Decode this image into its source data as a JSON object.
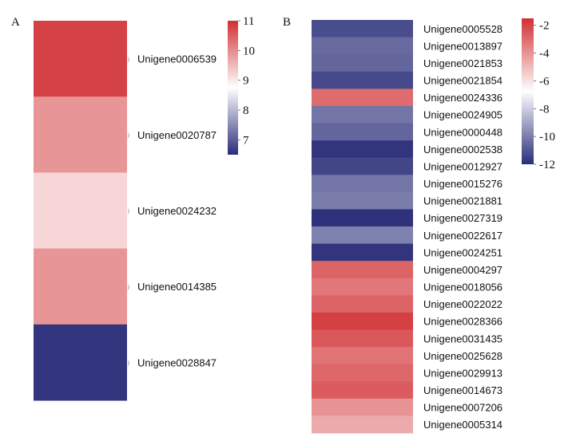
{
  "panel_a_letter": "A",
  "panel_b_letter": "B",
  "chart_data": [
    {
      "type": "heatmap",
      "panel": "A",
      "rows": [
        "Unigene0006539",
        "Unigene0020787",
        "Unigene0024232",
        "Unigene0014385",
        "Unigene0028847"
      ],
      "values": [
        10.8,
        9.9,
        9.2,
        9.9,
        6.6
      ],
      "colorbar": {
        "range": [
          6.5,
          11
        ],
        "ticks": [
          11,
          10,
          9,
          8,
          7
        ],
        "colors": [
          "#2a2d78",
          "#ffffff",
          "#d13033"
        ]
      }
    },
    {
      "type": "heatmap",
      "panel": "B",
      "rows": [
        "Unigene0005528",
        "Unigene0013897",
        "Unigene0021853",
        "Unigene0021854",
        "Unigene0024336",
        "Unigene0024905",
        "Unigene0000448",
        "Unigene0002538",
        "Unigene0012927",
        "Unigene0015276",
        "Unigene0021881",
        "Unigene0027319",
        "Unigene0022617",
        "Unigene0024251",
        "Unigene0004297",
        "Unigene0018056",
        "Unigene0022022",
        "Unigene0028366",
        "Unigene0031435",
        "Unigene0025628",
        "Unigene0029913",
        "Unigene0014673",
        "Unigene0007206",
        "Unigene0005314"
      ],
      "values": [
        -11.2,
        -10.5,
        -10.6,
        -11.3,
        -3.0,
        -10.2,
        -10.6,
        -11.8,
        -11.4,
        -10.2,
        -10.0,
        -11.9,
        -9.9,
        -11.8,
        -2.8,
        -3.3,
        -2.8,
        -1.9,
        -2.5,
        -3.2,
        -2.9,
        -2.6,
        -4.0,
        -4.6
      ],
      "colorbar": {
        "range": [
          -12,
          -1.5
        ],
        "ticks": [
          -2,
          -4,
          -6,
          -8,
          -10,
          -12
        ],
        "colors": [
          "#2a2d78",
          "#ffffff",
          "#d13033"
        ]
      }
    }
  ]
}
